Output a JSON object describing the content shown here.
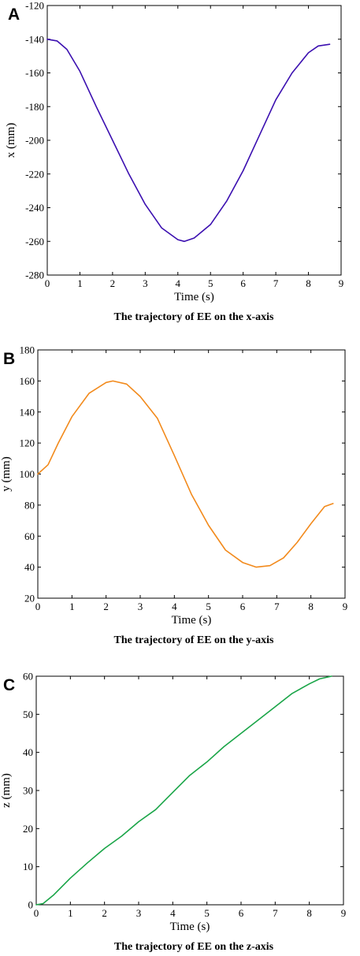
{
  "chart_data": [
    {
      "type": "line",
      "panel_label": "A",
      "caption": "The trajectory of EE on the x-axis",
      "xlabel": "Time (s)",
      "ylabel": "x (mm)",
      "xlim": [
        0,
        9
      ],
      "ylim": [
        -280,
        -120
      ],
      "xticks": [
        "0",
        "1",
        "2",
        "3",
        "4",
        "5",
        "6",
        "7",
        "8",
        "9"
      ],
      "yticks": [
        "-120",
        "-140",
        "-160",
        "-180",
        "-200",
        "-220",
        "-240",
        "-260",
        "-280"
      ],
      "grid": false,
      "color": "#3b0fb0",
      "series": [
        {
          "x": [
            0,
            0.3,
            0.6,
            1,
            1.5,
            2,
            2.5,
            3,
            3.5,
            4,
            4.2,
            4.5,
            5,
            5.5,
            6,
            6.5,
            7,
            7.5,
            8,
            8.3,
            8.65
          ],
          "y": [
            -140,
            -141,
            -146,
            -159,
            -180,
            -200,
            -220,
            -238,
            -252,
            -259,
            -260,
            -258,
            -250,
            -236,
            -218,
            -197,
            -176,
            -160,
            -148,
            -144,
            -143
          ]
        }
      ]
    },
    {
      "type": "line",
      "panel_label": "B",
      "caption": "The trajectory of EE on the y-axis",
      "xlabel": "Time (s)",
      "ylabel": "y (mm)",
      "xlim": [
        0,
        9
      ],
      "ylim": [
        20,
        180
      ],
      "xticks": [
        "0",
        "1",
        "2",
        "3",
        "4",
        "5",
        "6",
        "7",
        "8",
        "9"
      ],
      "yticks": [
        "20",
        "40",
        "60",
        "80",
        "100",
        "120",
        "140",
        "160",
        "180"
      ],
      "grid": false,
      "color": "#f28a1c",
      "series": [
        {
          "x": [
            0,
            0.3,
            0.6,
            1,
            1.5,
            2,
            2.2,
            2.6,
            3,
            3.5,
            4,
            4.5,
            5,
            5.5,
            6,
            6.4,
            6.8,
            7.2,
            7.6,
            8,
            8.4,
            8.65
          ],
          "y": [
            100,
            106,
            120,
            137,
            152,
            159,
            160,
            158,
            150,
            136,
            112,
            87,
            67,
            51,
            43,
            40,
            41,
            46,
            56,
            68,
            79,
            81
          ]
        }
      ]
    },
    {
      "type": "line",
      "panel_label": "C",
      "caption": "The trajectory of EE on the z-axis",
      "xlabel": "Time (s)",
      "ylabel": "z (mm)",
      "xlim": [
        0,
        9
      ],
      "ylim": [
        0,
        60
      ],
      "xticks": [
        "0",
        "1",
        "2",
        "3",
        "4",
        "5",
        "6",
        "7",
        "8",
        "9"
      ],
      "yticks": [
        "0",
        "10",
        "20",
        "30",
        "40",
        "50",
        "60"
      ],
      "grid": false,
      "color": "#1aa548",
      "series": [
        {
          "x": [
            0,
            0.2,
            0.5,
            1,
            1.5,
            2,
            2.5,
            3,
            3.5,
            4,
            4.5,
            5,
            5.5,
            6,
            6.5,
            7,
            7.5,
            8,
            8.3,
            8.65
          ],
          "y": [
            0,
            0.3,
            2.5,
            7,
            11,
            14.8,
            18,
            21.8,
            25,
            29.5,
            34,
            37.5,
            41.5,
            45,
            48.5,
            52,
            55.5,
            58,
            59.3,
            60
          ]
        }
      ]
    }
  ]
}
